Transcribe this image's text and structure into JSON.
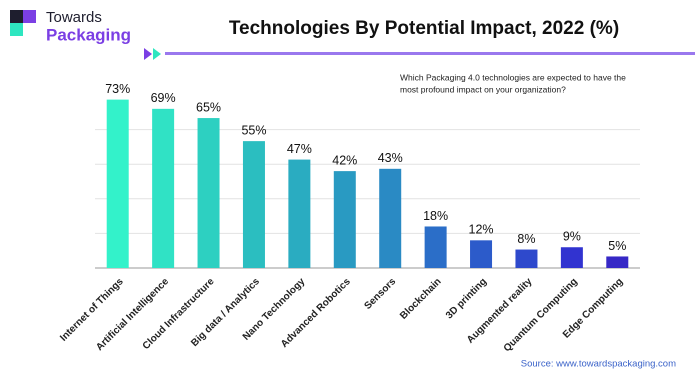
{
  "brand": {
    "line1": "Towards",
    "line2": "Packaging"
  },
  "chart_data": {
    "type": "bar",
    "title": "Technologies By Potential Impact, 2022 (%)",
    "annotation": [
      "Which Packaging 4.0 technologies are expected to have the",
      "most profound impact on your organization?"
    ],
    "categories": [
      "Internet of Things",
      "Artificial Intelligence",
      "Cloud Infrastructure",
      "Big data / Analytics",
      "Nano Technology",
      "Advanced Robotics",
      "Sensors",
      "Blockchain",
      "3D printing",
      "Augmented reality",
      "Quantum Computing",
      "Edge Computing"
    ],
    "values": [
      73,
      69,
      65,
      55,
      47,
      42,
      43,
      18,
      12,
      8,
      9,
      5
    ],
    "value_labels": [
      "73%",
      "69%",
      "65%",
      "55%",
      "47%",
      "42%",
      "43%",
      "18%",
      "12%",
      "8%",
      "9%",
      "5%"
    ],
    "colors": [
      "#33f2ca",
      "#30e2c5",
      "#2dd0c1",
      "#2bbec0",
      "#2aacc1",
      "#299ac2",
      "#2a8ac4",
      "#2b6ec8",
      "#2c5bca",
      "#2e49cc",
      "#3133d0",
      "#3628c6"
    ],
    "ylim": [
      0,
      75
    ],
    "yticks": [
      0,
      15,
      30,
      45,
      60
    ],
    "grid": true,
    "source": "Source: www.towardspackaging.com"
  }
}
